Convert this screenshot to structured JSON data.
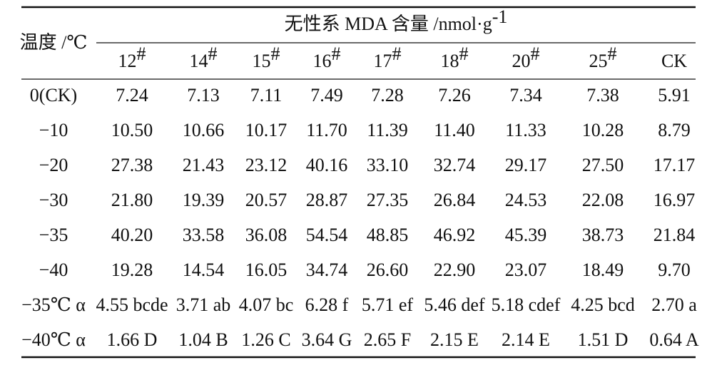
{
  "table": {
    "row_header": "温度 /℃",
    "group_header": {
      "text": "无性系 MDA 含量 /nmol·g",
      "sup": "-1"
    },
    "columns": [
      {
        "text": "12",
        "sup": "#"
      },
      {
        "text": "14",
        "sup": "#"
      },
      {
        "text": "15",
        "sup": "#"
      },
      {
        "text": "16",
        "sup": "#"
      },
      {
        "text": "17",
        "sup": "#"
      },
      {
        "text": "18",
        "sup": "#"
      },
      {
        "text": "20",
        "sup": "#"
      },
      {
        "text": "25",
        "sup": "#"
      },
      {
        "text": "CK"
      }
    ],
    "rows": [
      {
        "label": "0(CK)",
        "cells": [
          "7.24",
          "7.13",
          "7.11",
          "7.49",
          "7.28",
          "7.26",
          "7.34",
          "7.38",
          "5.91"
        ]
      },
      {
        "label": "−10",
        "cells": [
          "10.50",
          "10.66",
          "10.17",
          "11.70",
          "11.39",
          "11.40",
          "11.33",
          "10.28",
          "8.79"
        ]
      },
      {
        "label": "−20",
        "cells": [
          "27.38",
          "21.43",
          "23.12",
          "40.16",
          "33.10",
          "32.74",
          "29.17",
          "27.50",
          "17.17"
        ]
      },
      {
        "label": "−30",
        "cells": [
          "21.80",
          "19.39",
          "20.57",
          "28.87",
          "27.35",
          "26.84",
          "24.53",
          "22.08",
          "16.97"
        ]
      },
      {
        "label": "−35",
        "cells": [
          "40.20",
          "33.58",
          "36.08",
          "54.54",
          "48.85",
          "46.92",
          "45.39",
          "38.73",
          "21.84"
        ]
      },
      {
        "label": "−40",
        "cells": [
          "19.28",
          "14.54",
          "16.05",
          "34.74",
          "26.60",
          "22.90",
          "23.07",
          "18.49",
          "9.70"
        ]
      },
      {
        "label": "−35℃ α",
        "cells": [
          "4.55 bcde",
          "3.71 ab",
          "4.07 bc",
          "6.28 f",
          "5.71 ef",
          "5.46 def",
          "5.18 cdef",
          "4.25 bcd",
          "2.70 a"
        ]
      },
      {
        "label": "−40℃ α",
        "cells": [
          "1.66 D",
          "1.04 B",
          "1.26 C",
          "3.64 G",
          "2.65 F",
          "2.15 E",
          "2.14 E",
          "1.51 D",
          "0.64 A"
        ]
      }
    ]
  }
}
